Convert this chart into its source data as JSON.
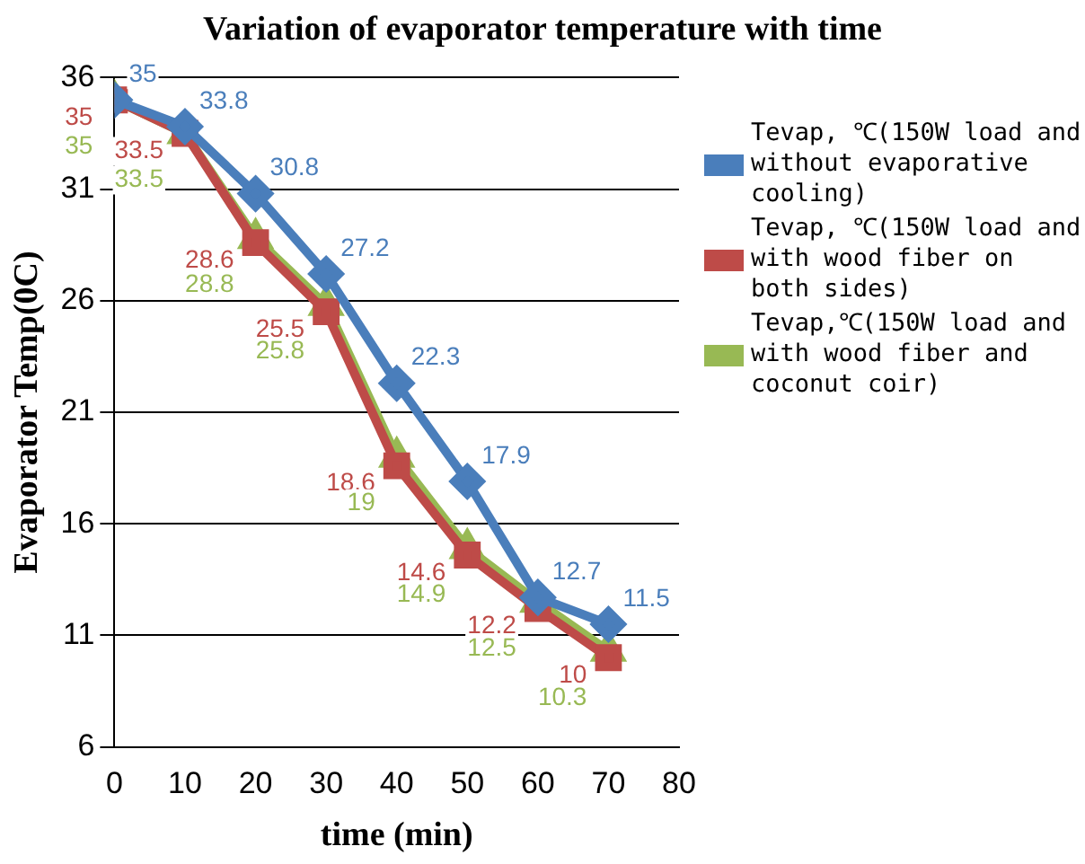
{
  "chart_data": {
    "type": "line",
    "title": "Variation of evaporator temperature with time",
    "xlabel": "time (min)",
    "ylabel": "Evaporator Temp(0C)",
    "x": [
      0,
      10,
      20,
      30,
      40,
      50,
      60,
      70
    ],
    "series": [
      {
        "name": "Tevap, ℃(150W load and without evaporative cooling)",
        "color": "#4a7ebb",
        "marker": "diamond",
        "values": [
          35,
          33.8,
          30.8,
          27.2,
          22.3,
          17.9,
          12.7,
          11.5
        ]
      },
      {
        "name": "Tevap, ℃(150W load and with wood fiber on both sides)",
        "color": "#be4b48",
        "marker": "square",
        "values": [
          35,
          33.5,
          28.6,
          25.5,
          18.6,
          14.6,
          12.2,
          10
        ]
      },
      {
        "name": "Tevap,℃(150W load and with wood fiber and coconut coir)",
        "color": "#98b954",
        "marker": "triangle",
        "values": [
          35,
          33.5,
          28.8,
          25.8,
          19,
          14.9,
          12.5,
          10.3
        ]
      }
    ],
    "xlim": [
      0,
      80
    ],
    "xticks": [
      0,
      10,
      20,
      30,
      40,
      50,
      60,
      70,
      80
    ],
    "ylim": [
      6,
      36
    ],
    "yticks": [
      6,
      11,
      16,
      21,
      26,
      31,
      36
    ],
    "grid": "y",
    "legend": "right",
    "data_labels": true
  }
}
